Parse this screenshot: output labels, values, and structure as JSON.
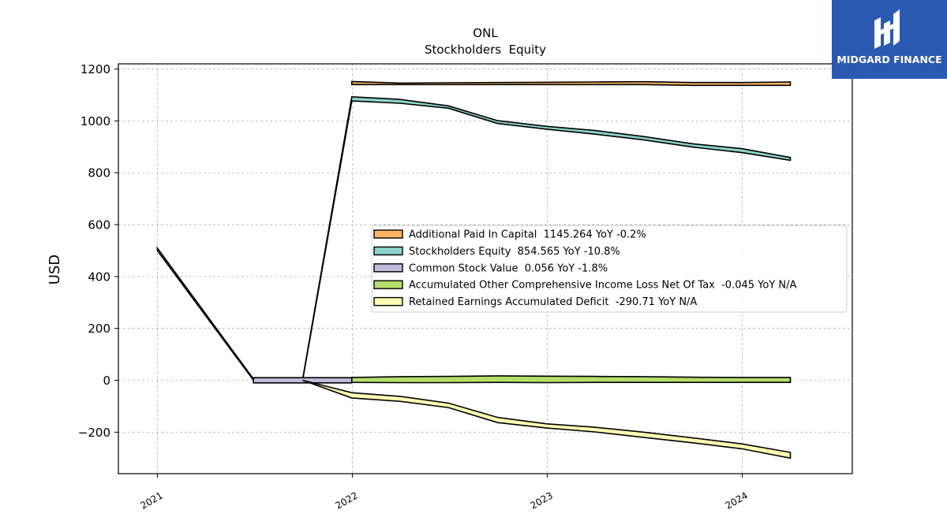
{
  "brand": {
    "name": "MIDGARD FINANCE",
    "bg_color": "#2a5ab0"
  },
  "chart_data": {
    "type": "area",
    "title": "ONL",
    "subtitle": "Stockholders  Equity",
    "ylabel": "USD",
    "xlabel": "",
    "ylim": [
      -360,
      1220
    ],
    "yticks": [
      -200,
      0,
      200,
      400,
      600,
      800,
      1000,
      1200
    ],
    "ytick_labels": [
      "−200",
      "0",
      "200",
      "400",
      "600",
      "800",
      "1000",
      "1200"
    ],
    "xlim": [
      "2020-10-20",
      "2024-07-25"
    ],
    "xticks": [
      "2021-01-01",
      "2022-01-01",
      "2023-01-01",
      "2024-01-01"
    ],
    "xtick_labels": [
      "2021",
      "2022",
      "2023",
      "2024"
    ],
    "grid": true,
    "legend_position": "center-right",
    "series": [
      {
        "name": "Additional Paid In Capital  1145.264 YoY -0.2%",
        "color": "#fdb462",
        "x": [
          "2021-12-31",
          "2022-03-31",
          "2022-06-30",
          "2022-09-30",
          "2022-12-31",
          "2023-03-31",
          "2023-06-30",
          "2023-09-30",
          "2023-12-31",
          "2024-03-31"
        ],
        "upper": [
          1152,
          1146,
          1147,
          1148,
          1149,
          1150,
          1151,
          1148,
          1148,
          1150
        ],
        "lower": [
          1140,
          1140,
          1140,
          1140,
          1140,
          1140,
          1140,
          1137,
          1137,
          1137
        ]
      },
      {
        "name": "Stockholders Equity  854.565 YoY -10.8%",
        "color": "#8dd3c7",
        "x": [
          "2021-01-01",
          "2021-06-30",
          "2021-09-30",
          "2021-12-31",
          "2022-03-31",
          "2022-06-30",
          "2022-09-30",
          "2022-12-31",
          "2023-03-31",
          "2023-06-30",
          "2023-09-30",
          "2023-12-31",
          "2024-03-31"
        ],
        "upper": [
          510,
          5,
          5,
          1093,
          1083,
          1058,
          1001,
          979,
          963,
          940,
          912,
          893,
          859
        ],
        "lower": [
          500,
          0,
          0,
          1077,
          1068,
          1049,
          990,
          968,
          949,
          927,
          899,
          878,
          848
        ]
      },
      {
        "name": "Common Stock Value  0.056 YoY -1.8%",
        "color": "#bebada",
        "x": [
          "2021-06-30",
          "2021-09-30",
          "2021-12-31"
        ],
        "upper": [
          10,
          10,
          10
        ],
        "lower": [
          -10,
          -10,
          -10
        ]
      },
      {
        "name": "Accumulated Other Comprehensive Income Loss Net Of Tax  -0.045 YoY N/A",
        "color": "#b3de69",
        "x": [
          "2021-12-31",
          "2022-03-31",
          "2022-06-30",
          "2022-09-30",
          "2022-12-31",
          "2023-03-31",
          "2023-06-30",
          "2023-09-30",
          "2023-12-31",
          "2024-03-31"
        ],
        "upper": [
          11,
          14,
          15,
          17,
          16,
          15,
          14,
          12,
          11,
          11
        ],
        "lower": [
          -8,
          -9,
          -9,
          -8,
          -9,
          -8,
          -8,
          -8,
          -8,
          -8
        ]
      },
      {
        "name": "Retained Earnings Accumulated Deficit  -290.71 YoY N/A",
        "color": "#ffffb3",
        "x": [
          "2021-09-30",
          "2021-12-31",
          "2022-03-31",
          "2022-06-30",
          "2022-09-30",
          "2022-12-31",
          "2023-03-31",
          "2023-06-30",
          "2023-09-30",
          "2023-12-31",
          "2024-03-31"
        ],
        "upper": [
          0,
          -48,
          -62,
          -88,
          -143,
          -168,
          -181,
          -200,
          -222,
          -245,
          -278
        ],
        "lower": [
          0,
          -68,
          -81,
          -105,
          -163,
          -184,
          -199,
          -220,
          -241,
          -264,
          -300
        ]
      }
    ]
  }
}
